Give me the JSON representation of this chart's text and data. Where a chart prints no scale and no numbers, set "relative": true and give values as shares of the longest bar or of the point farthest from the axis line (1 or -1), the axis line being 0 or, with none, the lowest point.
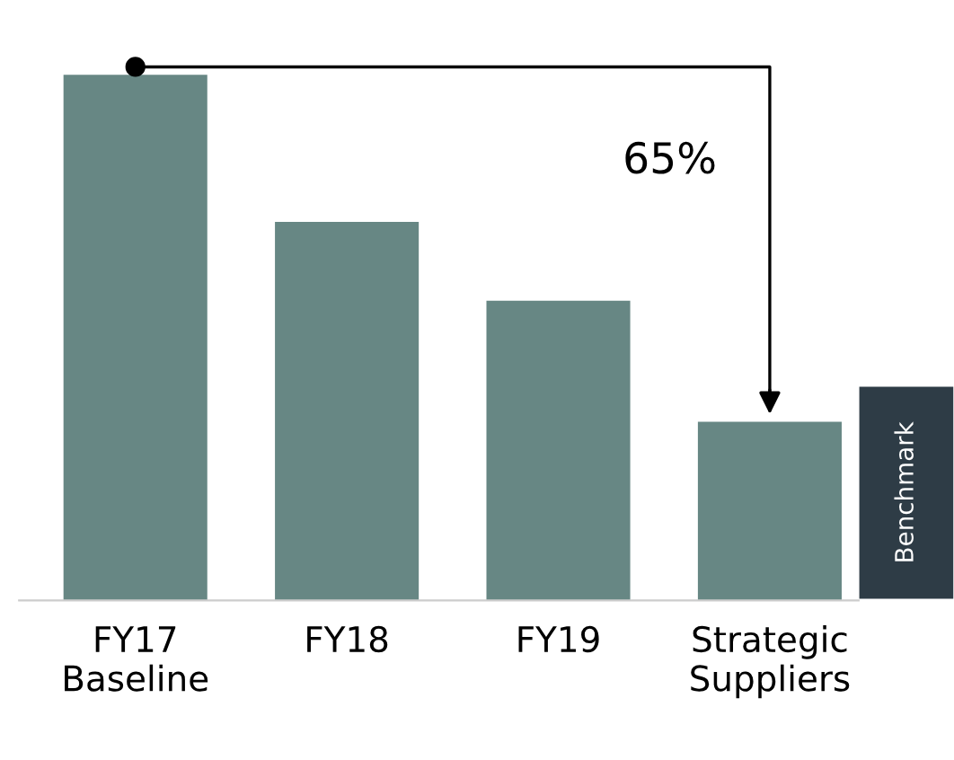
{
  "chart_data": {
    "type": "bar",
    "relative": true,
    "categories": [
      "FY17\nBaseline",
      "FY18",
      "FY19",
      "Strategic\nSuppliers"
    ],
    "values": [
      1.0,
      0.72,
      0.57,
      0.34
    ],
    "color": "#678784",
    "annotations": [
      "65%",
      "Benchmark"
    ]
  }
}
